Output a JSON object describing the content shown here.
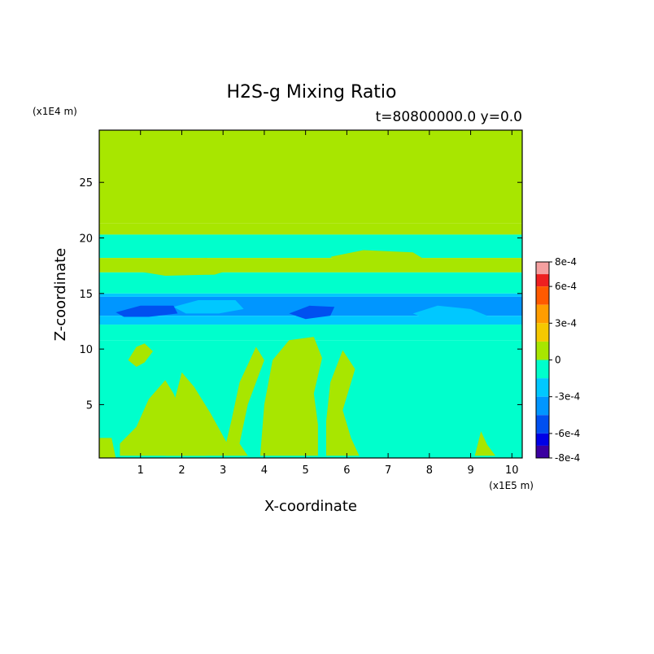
{
  "chart_data": {
    "type": "heatmap",
    "title": "H2S-g Mixing Ratio",
    "subtitle": "t=80800000.0 y=0.0",
    "xlabel": "X-coordinate",
    "ylabel": "Z-coordinate",
    "x_unit": "(x1E5 m)",
    "y_unit": "(x1E4 m)",
    "xlim": [
      0,
      10.25
    ],
    "ylim": [
      0.2,
      29.7
    ],
    "x_ticks": [
      1,
      2,
      3,
      4,
      5,
      6,
      7,
      8,
      9,
      10
    ],
    "y_ticks": [
      5,
      10,
      15,
      20,
      25
    ],
    "colorbar": {
      "range": [
        -0.0008,
        0.0008
      ],
      "tick_labels": [
        "8e-4",
        "6e-4",
        "3e-4",
        "0",
        "-3e-4",
        "-6e-4",
        "-8e-4"
      ],
      "tick_values": [
        0.0008,
        0.0006,
        0.0003,
        0,
        -0.0003,
        -0.0006,
        -0.0008
      ],
      "levels": [
        {
          "from": 0.0007,
          "to": 0.0008,
          "color": "#f5a0a0"
        },
        {
          "from": 0.0006,
          "to": 0.0007,
          "color": "#ee2020"
        },
        {
          "from": 0.00045,
          "to": 0.0006,
          "color": "#ff5a00"
        },
        {
          "from": 0.0003,
          "to": 0.00045,
          "color": "#ff9d00"
        },
        {
          "from": 0.00015,
          "to": 0.0003,
          "color": "#f5c800"
        },
        {
          "from": 0,
          "to": 0.00015,
          "color": "#a8e600"
        },
        {
          "from": -0.00015,
          "to": 0,
          "color": "#00ffcc"
        },
        {
          "from": -0.0003,
          "to": -0.00015,
          "color": "#00c8ff"
        },
        {
          "from": -0.00045,
          "to": -0.0003,
          "color": "#0096ff"
        },
        {
          "from": -0.0006,
          "to": -0.00045,
          "color": "#0050f0"
        },
        {
          "from": -0.0007,
          "to": -0.0006,
          "color": "#0000e6"
        },
        {
          "from": -0.0008,
          "to": -0.0007,
          "color": "#3a00a0"
        }
      ]
    },
    "bands": [
      {
        "z": [
          21.3,
          29.7
        ],
        "value": 5e-05
      },
      {
        "z": [
          20.3,
          21.3
        ],
        "value": 5e-05
      },
      {
        "z": [
          18.2,
          20.3
        ],
        "value": -5e-05
      },
      {
        "z": [
          16.9,
          18.2
        ],
        "value": 5e-05
      },
      {
        "z": [
          15.0,
          16.9
        ],
        "value": -5e-05
      },
      {
        "z": [
          14.7,
          15.0
        ],
        "value": -0.0002
      },
      {
        "z": [
          13.0,
          14.7
        ],
        "value": -0.00035
      },
      {
        "z": [
          12.2,
          13.0
        ],
        "value": -0.0002
      },
      {
        "z": [
          10.8,
          12.2
        ],
        "value": -5e-05
      },
      {
        "z": [
          0.2,
          10.8
        ],
        "value": -5e-05
      }
    ],
    "regions": [
      {
        "name": "lower-left-plume",
        "value": 5e-05,
        "points": [
          [
            0.5,
            0.4
          ],
          [
            0.5,
            1.5
          ],
          [
            0.9,
            3.0
          ],
          [
            1.2,
            5.5
          ],
          [
            1.6,
            7.2
          ],
          [
            1.8,
            6.0
          ],
          [
            2.0,
            4.2
          ],
          [
            2.3,
            2.0
          ],
          [
            2.6,
            0.4
          ]
        ]
      },
      {
        "name": "left-finger",
        "value": 5e-05,
        "points": [
          [
            1.6,
            0.4
          ],
          [
            1.8,
            5.0
          ],
          [
            2.0,
            7.9
          ],
          [
            2.3,
            6.6
          ],
          [
            2.7,
            4.2
          ],
          [
            3.1,
            1.5
          ],
          [
            3.0,
            0.4
          ]
        ]
      },
      {
        "name": "mid-thin-plume",
        "value": 5e-05,
        "points": [
          [
            3.0,
            0.4
          ],
          [
            3.2,
            3.5
          ],
          [
            3.4,
            7.0
          ],
          [
            3.8,
            10.2
          ],
          [
            4.0,
            9.0
          ],
          [
            3.6,
            5.0
          ],
          [
            3.4,
            1.5
          ],
          [
            3.6,
            0.4
          ]
        ]
      },
      {
        "name": "center-plume",
        "value": 5e-05,
        "points": [
          [
            3.9,
            0.4
          ],
          [
            4.0,
            5.0
          ],
          [
            4.2,
            9.0
          ],
          [
            4.6,
            10.8
          ],
          [
            5.2,
            11.1
          ],
          [
            5.4,
            9.2
          ],
          [
            5.2,
            6.0
          ],
          [
            5.3,
            3.2
          ],
          [
            5.3,
            0.4
          ]
        ]
      },
      {
        "name": "right-center-plume",
        "value": 5e-05,
        "points": [
          [
            5.5,
            0.4
          ],
          [
            5.5,
            3.5
          ],
          [
            5.6,
            7.0
          ],
          [
            5.9,
            9.9
          ],
          [
            6.2,
            8.2
          ],
          [
            5.9,
            4.5
          ],
          [
            6.1,
            2.0
          ],
          [
            6.3,
            0.4
          ]
        ]
      },
      {
        "name": "z10-left-cell",
        "value": 5e-05,
        "points": [
          [
            0.7,
            9.0
          ],
          [
            0.9,
            10.2
          ],
          [
            1.1,
            10.5
          ],
          [
            1.3,
            9.8
          ],
          [
            1.1,
            8.8
          ],
          [
            0.9,
            8.4
          ]
        ]
      },
      {
        "name": "far-right-sliver",
        "value": 5e-05,
        "points": [
          [
            9.1,
            0.4
          ],
          [
            9.25,
            2.6
          ],
          [
            9.4,
            1.4
          ],
          [
            9.6,
            0.4
          ]
        ]
      },
      {
        "name": "bottom-left-strip",
        "value": 5e-05,
        "points": [
          [
            0,
            0.2
          ],
          [
            0,
            2.0
          ],
          [
            0.3,
            2.0
          ],
          [
            0.4,
            0.2
          ]
        ]
      },
      {
        "name": "upper-left-lens",
        "value": 5e-05,
        "points": [
          [
            0.6,
            17.2
          ],
          [
            1.4,
            18.0
          ],
          [
            2.6,
            18.2
          ],
          [
            3.4,
            17.4
          ],
          [
            2.8,
            16.7
          ],
          [
            1.6,
            16.6
          ]
        ]
      },
      {
        "name": "upper-right-lens",
        "value": 5e-05,
        "points": [
          [
            5.6,
            18.3
          ],
          [
            6.4,
            18.9
          ],
          [
            7.6,
            18.7
          ],
          [
            8.0,
            17.8
          ],
          [
            7.2,
            17.2
          ],
          [
            6.0,
            17.4
          ]
        ]
      },
      {
        "name": "right-shelf",
        "value": -0.0002,
        "points": [
          [
            7.6,
            13.2
          ],
          [
            8.2,
            13.9
          ],
          [
            9.0,
            13.6
          ],
          [
            9.4,
            13.0
          ],
          [
            8.8,
            12.5
          ],
          [
            8.0,
            12.6
          ]
        ]
      },
      {
        "name": "left-shelf",
        "value": -0.0002,
        "points": [
          [
            1.8,
            13.8
          ],
          [
            2.4,
            14.4
          ],
          [
            3.3,
            14.4
          ],
          [
            3.5,
            13.6
          ],
          [
            2.9,
            13.2
          ],
          [
            2.1,
            13.2
          ]
        ]
      },
      {
        "name": "deep-core-a",
        "value": -0.0005,
        "points": [
          [
            0.4,
            13.3
          ],
          [
            1.0,
            13.9
          ],
          [
            1.8,
            13.9
          ],
          [
            1.9,
            13.2
          ],
          [
            1.2,
            12.9
          ],
          [
            0.6,
            12.9
          ]
        ]
      },
      {
        "name": "deep-core-b",
        "value": -0.0005,
        "points": [
          [
            4.6,
            13.2
          ],
          [
            5.1,
            13.9
          ],
          [
            5.7,
            13.8
          ],
          [
            5.6,
            13.0
          ],
          [
            5.0,
            12.7
          ]
        ]
      }
    ]
  }
}
